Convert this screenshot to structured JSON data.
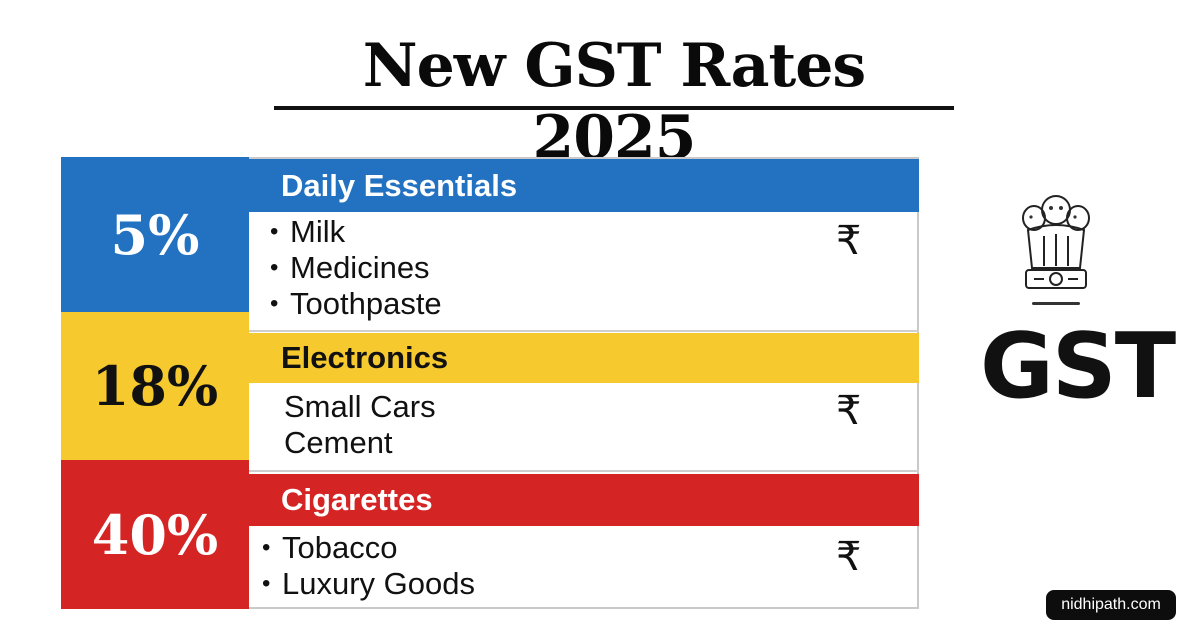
{
  "title": "New GST Rates 2025",
  "colors": {
    "blue": "#2272c1",
    "yellow": "#f6ca2f",
    "red": "#d42524"
  },
  "slabs": [
    {
      "rate": "5%",
      "category": "Daily Essentials",
      "items": [
        "Milk",
        "Medicines",
        "Toothpaste"
      ],
      "currency_icon": "rupee-icon"
    },
    {
      "rate": "18%",
      "category": "Electronics",
      "items": [
        "Small Cars",
        "Cement"
      ],
      "currency_icon": "rupee-icon"
    },
    {
      "rate": "40%",
      "category": "Cigarettes",
      "items": [
        "Tobacco",
        "Luxury Goods"
      ],
      "currency_icon": "rupee-icon"
    }
  ],
  "logo": {
    "emblem_icon": "national-emblem-icon",
    "label": "GST"
  },
  "watermark": "nidhipath.com"
}
